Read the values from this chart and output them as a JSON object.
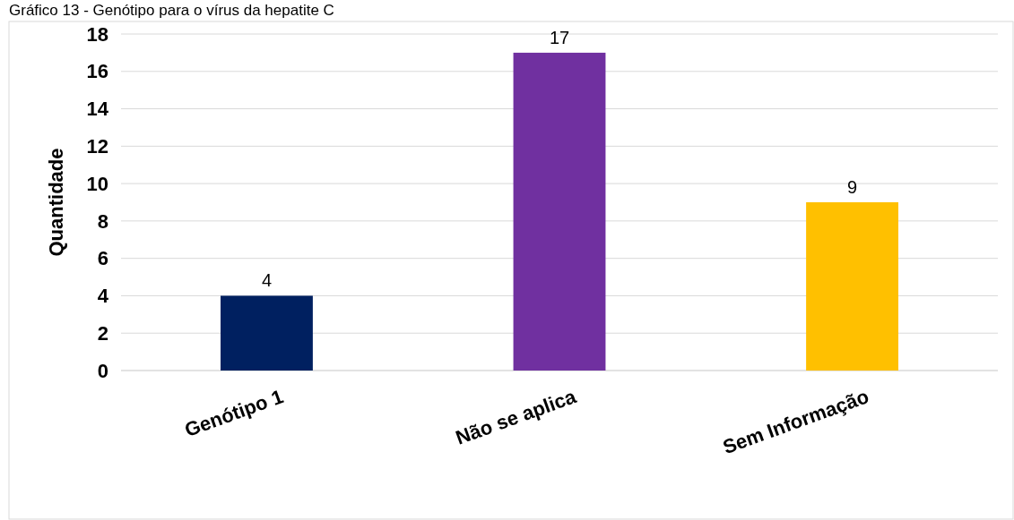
{
  "chart_data": {
    "type": "bar",
    "title": "Gráfico 13 - Genótipo para o vírus da hepatite C",
    "ylabel": "Quantidade",
    "categories": [
      "Genótipo 1",
      "Não se aplica",
      "Sem Informação"
    ],
    "values": [
      4,
      17,
      9
    ],
    "colors": [
      "#002060",
      "#7030a0",
      "#ffc000"
    ],
    "ylim": [
      0,
      18
    ],
    "yticks": [
      0,
      2,
      4,
      6,
      8,
      10,
      12,
      14,
      16,
      18
    ],
    "grid": "y",
    "data_labels": true
  }
}
